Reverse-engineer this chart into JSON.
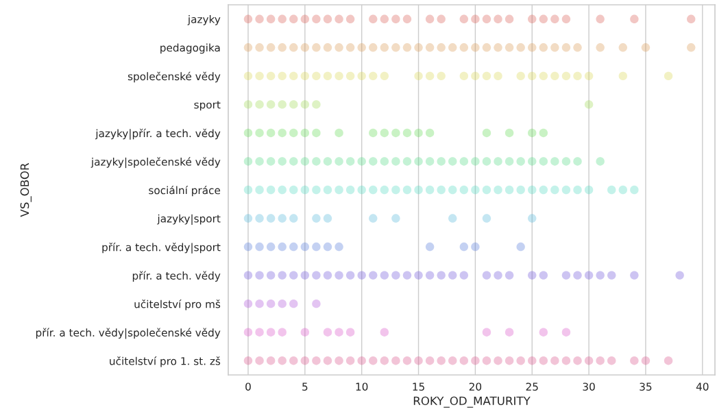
{
  "chart_data": {
    "type": "scatter",
    "orientation": "horizontal",
    "xlabel": "ROKY_OD_MATURITY",
    "ylabel": "VS_OBOR",
    "categories": [
      "jazyky",
      "pedagogika",
      "společenské vědy",
      "sport",
      "jazyky|přír. a tech. vědy",
      "jazyky|společenské vědy",
      "sociální práce",
      "jazyky|sport",
      "přír. a tech. vědy|sport",
      "přír. a tech. vědy",
      "učitelství pro mš",
      "přír. a tech. vědy|společenské vědy",
      "učitelství pro 1. st. zš"
    ],
    "xlim": [
      -1.75,
      41.1
    ],
    "xticks": [
      0,
      5,
      10,
      15,
      20,
      25,
      30,
      35,
      40
    ],
    "grid": "x",
    "marker": "circle",
    "legend": false,
    "series": [
      {
        "color": "#db5f57",
        "values": [
          0,
          1,
          2,
          3,
          4,
          5,
          6,
          7,
          8,
          9,
          11,
          12,
          13,
          14,
          16,
          17,
          19,
          20,
          21,
          22,
          23,
          25,
          26,
          27,
          28,
          31,
          34,
          39
        ],
        "x": [
          "jazyky",
          "jazyky",
          "jazyky",
          "jazyky",
          "jazyky",
          "jazyky",
          "jazyky",
          "jazyky",
          "jazyky",
          "jazyky",
          "jazyky",
          "jazyky",
          "jazyky",
          "jazyky",
          "jazyky",
          "jazyky",
          "jazyky",
          "jazyky",
          "jazyky",
          "jazyky",
          "jazyky",
          "jazyky",
          "jazyky",
          "jazyky",
          "jazyky",
          "jazyky",
          "jazyky",
          "jazyky"
        ]
      },
      {
        "color": "#db9c57",
        "values": [
          0,
          1,
          2,
          3,
          4,
          5,
          6,
          7,
          8,
          9,
          10,
          11,
          12,
          13,
          14,
          15,
          16,
          17,
          18,
          19,
          20,
          21,
          22,
          23,
          24,
          25,
          26,
          27,
          28,
          29,
          31,
          33,
          35,
          39
        ],
        "x": [
          "pedagogika",
          "pedagogika",
          "pedagogika",
          "pedagogika",
          "pedagogika",
          "pedagogika",
          "pedagogika",
          "pedagogika",
          "pedagogika",
          "pedagogika",
          "pedagogika",
          "pedagogika",
          "pedagogika",
          "pedagogika",
          "pedagogika",
          "pedagogika",
          "pedagogika",
          "pedagogika",
          "pedagogika",
          "pedagogika",
          "pedagogika",
          "pedagogika",
          "pedagogika",
          "pedagogika",
          "pedagogika",
          "pedagogika",
          "pedagogika",
          "pedagogika",
          "pedagogika",
          "pedagogika",
          "pedagogika",
          "pedagogika",
          "pedagogika",
          "pedagogika"
        ]
      },
      {
        "color": "#dbd857",
        "values": [
          0,
          1,
          2,
          3,
          4,
          5,
          6,
          7,
          8,
          9,
          10,
          11,
          12,
          15,
          16,
          17,
          19,
          20,
          21,
          22,
          24,
          25,
          26,
          27,
          28,
          29,
          30,
          33,
          37
        ],
        "x": [
          "společenské vědy",
          "společenské vědy",
          "společenské vědy",
          "společenské vědy",
          "společenské vědy",
          "společenské vědy",
          "společenské vědy",
          "společenské vědy",
          "společenské vědy",
          "společenské vědy",
          "společenské vědy",
          "společenské vědy",
          "společenské vědy",
          "společenské vědy",
          "společenské vědy",
          "společenské vědy",
          "společenské vědy",
          "společenské vědy",
          "společenské vědy",
          "společenské vědy",
          "společenské vědy",
          "společenské vědy",
          "společenské vědy",
          "společenské vědy",
          "společenské vědy",
          "společenské vědy",
          "společenské vědy",
          "společenské vědy",
          "společenské vědy"
        ]
      },
      {
        "color": "#a1db57",
        "values": [
          0,
          1,
          2,
          3,
          4,
          5,
          6,
          30
        ],
        "x": [
          "sport",
          "sport",
          "sport",
          "sport",
          "sport",
          "sport",
          "sport",
          "sport"
        ]
      },
      {
        "color": "#64db57",
        "values": [
          0,
          1,
          2,
          3,
          4,
          5,
          6,
          8,
          11,
          12,
          13,
          14,
          15,
          16,
          21,
          23,
          25,
          26
        ],
        "x": [
          "jazyky|přír. a tech. vědy",
          "jazyky|přír. a tech. vědy",
          "jazyky|přír. a tech. vědy",
          "jazyky|přír. a tech. vědy",
          "jazyky|přír. a tech. vědy",
          "jazyky|přír. a tech. vědy",
          "jazyky|přír. a tech. vědy",
          "jazyky|přír. a tech. vědy",
          "jazyky|přír. a tech. vědy",
          "jazyky|přír. a tech. vědy",
          "jazyky|přír. a tech. vědy",
          "jazyky|přír. a tech. vědy",
          "jazyky|přír. a tech. vědy",
          "jazyky|přír. a tech. vědy",
          "jazyky|přír. a tech. vědy",
          "jazyky|přír. a tech. vědy",
          "jazyky|přír. a tech. vědy",
          "jazyky|přír. a tech. vědy"
        ]
      },
      {
        "color": "#57db87",
        "values": [
          0,
          1,
          2,
          3,
          4,
          5,
          6,
          7,
          8,
          9,
          10,
          11,
          12,
          13,
          14,
          15,
          16,
          17,
          18,
          19,
          20,
          21,
          22,
          23,
          24,
          25,
          26,
          27,
          28,
          29,
          31
        ],
        "x": [
          "jazyky|společenské vědy",
          "jazyky|společenské vědy",
          "jazyky|společenské vědy",
          "jazyky|společenské vědy",
          "jazyky|společenské vědy",
          "jazyky|společenské vědy",
          "jazyky|společenské vědy",
          "jazyky|společenské vědy",
          "jazyky|společenské vědy",
          "jazyky|společenské vědy",
          "jazyky|společenské vědy",
          "jazyky|společenské vědy",
          "jazyky|společenské vědy",
          "jazyky|společenské vědy",
          "jazyky|společenské vědy",
          "jazyky|společenské vědy",
          "jazyky|společenské vědy",
          "jazyky|společenské vědy",
          "jazyky|společenské vědy",
          "jazyky|společenské vědy",
          "jazyky|společenské vědy",
          "jazyky|společenské vědy",
          "jazyky|společenské vědy",
          "jazyky|společenské vědy",
          "jazyky|společenské vědy",
          "jazyky|společenské vědy",
          "jazyky|společenské vědy",
          "jazyky|společenské vědy",
          "jazyky|společenské vědy",
          "jazyky|společenské vědy",
          "jazyky|společenské vědy"
        ]
      },
      {
        "color": "#57dbc3",
        "values": [
          0,
          1,
          2,
          3,
          4,
          5,
          6,
          7,
          8,
          9,
          10,
          11,
          12,
          13,
          14,
          15,
          16,
          17,
          18,
          19,
          20,
          21,
          22,
          23,
          24,
          25,
          26,
          27,
          28,
          29,
          30,
          32,
          33,
          34
        ],
        "x": [
          "sociální práce",
          "sociální práce",
          "sociální práce",
          "sociální práce",
          "sociální práce",
          "sociální práce",
          "sociální práce",
          "sociální práce",
          "sociální práce",
          "sociální práce",
          "sociální práce",
          "sociální práce",
          "sociální práce",
          "sociální práce",
          "sociální práce",
          "sociální práce",
          "sociální práce",
          "sociální práce",
          "sociální práce",
          "sociální práce",
          "sociální práce",
          "sociální práce",
          "sociální práce",
          "sociální práce",
          "sociální práce",
          "sociální práce",
          "sociální práce",
          "sociální práce",
          "sociální práce",
          "sociální práce",
          "sociální práce",
          "sociální práce",
          "sociální práce",
          "sociální práce"
        ]
      },
      {
        "color": "#57b6db",
        "values": [
          0,
          1,
          2,
          3,
          4,
          6,
          7,
          11,
          13,
          18,
          21,
          25
        ],
        "x": [
          "jazyky|sport",
          "jazyky|sport",
          "jazyky|sport",
          "jazyky|sport",
          "jazyky|sport",
          "jazyky|sport",
          "jazyky|sport",
          "jazyky|sport",
          "jazyky|sport",
          "jazyky|sport",
          "jazyky|sport",
          "jazyky|sport"
        ]
      },
      {
        "color": "#577bdb",
        "values": [
          0,
          1,
          2,
          3,
          4,
          5,
          6,
          7,
          8,
          16,
          19,
          20,
          24
        ],
        "x": [
          "přír. a tech. vědy|sport",
          "přír. a tech. vědy|sport",
          "přír. a tech. vědy|sport",
          "přír. a tech. vědy|sport",
          "přír. a tech. vědy|sport",
          "přír. a tech. vědy|sport",
          "přír. a tech. vědy|sport",
          "přír. a tech. vědy|sport",
          "přír. a tech. vědy|sport",
          "přír. a tech. vědy|sport",
          "přír. a tech. vědy|sport",
          "přír. a tech. vědy|sport",
          "přír. a tech. vědy|sport"
        ]
      },
      {
        "color": "#7157db",
        "values": [
          0,
          1,
          2,
          3,
          4,
          5,
          6,
          7,
          8,
          9,
          10,
          11,
          12,
          13,
          14,
          15,
          16,
          17,
          18,
          19,
          21,
          22,
          23,
          25,
          26,
          28,
          29,
          30,
          31,
          32,
          34,
          38
        ],
        "x": [
          "přír. a tech. vědy",
          "přír. a tech. vědy",
          "přír. a tech. vědy",
          "přír. a tech. vědy",
          "přír. a tech. vědy",
          "přír. a tech. vědy",
          "přír. a tech. vědy",
          "přír. a tech. vědy",
          "přír. a tech. vědy",
          "přír. a tech. vědy",
          "přír. a tech. vědy",
          "přír. a tech. vědy",
          "přír. a tech. vědy",
          "přír. a tech. vědy",
          "přír. a tech. vědy",
          "přír. a tech. vědy",
          "přír. a tech. vědy",
          "přír. a tech. vědy",
          "přír. a tech. vědy",
          "přír. a tech. vědy",
          "přír. a tech. vědy",
          "přír. a tech. vědy",
          "přír. a tech. vědy",
          "přír. a tech. vědy",
          "přír. a tech. vědy",
          "přír. a tech. vědy",
          "přír. a tech. vědy",
          "přír. a tech. vědy",
          "přír. a tech. vědy",
          "přír. a tech. vědy",
          "přír. a tech. vědy",
          "přír. a tech. vědy"
        ]
      },
      {
        "color": "#af57db",
        "values": [
          0,
          1,
          2,
          3,
          4,
          6
        ],
        "x": [
          "učitelství pro mš",
          "učitelství pro mš",
          "učitelství pro mš",
          "učitelství pro mš",
          "učitelství pro mš",
          "učitelství pro mš"
        ]
      },
      {
        "color": "#db57c9",
        "values": [
          0,
          1,
          2,
          3,
          5,
          7,
          8,
          9,
          12,
          21,
          23,
          26,
          28
        ],
        "x": [
          "přír. a tech. vědy|společenské vědy",
          "přír. a tech. vědy|společenské vědy",
          "přír. a tech. vědy|společenské vědy",
          "přír. a tech. vědy|společenské vědy",
          "přír. a tech. vědy|společenské vědy",
          "přír. a tech. vědy|společenské vědy",
          "přír. a tech. vědy|společenské vědy",
          "přír. a tech. vědy|společenské vědy",
          "přír. a tech. vědy|společenské vědy",
          "přír. a tech. vědy|společenské vědy",
          "přír. a tech. vědy|společenské vědy",
          "přír. a tech. vědy|společenské vědy",
          "přír. a tech. vědy|společenské vědy"
        ]
      },
      {
        "color": "#db578d",
        "values": [
          0,
          1,
          2,
          3,
          4,
          5,
          6,
          7,
          8,
          9,
          10,
          11,
          12,
          13,
          14,
          15,
          16,
          17,
          18,
          19,
          20,
          21,
          22,
          23,
          24,
          25,
          26,
          27,
          28,
          29,
          30,
          31,
          32,
          34,
          35,
          37
        ],
        "x": [
          "učitelství pro 1. st. zš",
          "učitelství pro 1. st. zš",
          "učitelství pro 1. st. zš",
          "učitelství pro 1. st. zš",
          "učitelství pro 1. st. zš",
          "učitelství pro 1. st. zš",
          "učitelství pro 1. st. zš",
          "učitelství pro 1. st. zš",
          "učitelství pro 1. st. zš",
          "učitelství pro 1. st. zš",
          "učitelství pro 1. st. zš",
          "učitelství pro 1. st. zš",
          "učitelství pro 1. st. zš",
          "učitelství pro 1. st. zš",
          "učitelství pro 1. st. zš",
          "učitelství pro 1. st. zš",
          "učitelství pro 1. st. zš",
          "učitelství pro 1. st. zš",
          "učitelství pro 1. st. zš",
          "učitelství pro 1. st. zš",
          "učitelství pro 1. st. zš",
          "učitelství pro 1. st. zš",
          "učitelství pro 1. st. zš",
          "učitelství pro 1. st. zš",
          "učitelství pro 1. st. zš",
          "učitelství pro 1. st. zš",
          "učitelství pro 1. st. zš",
          "učitelství pro 1. st. zš",
          "učitelství pro 1. st. zš",
          "učitelství pro 1. st. zš",
          "učitelství pro 1. st. zš",
          "učitelství pro 1. st. zš",
          "učitelství pro 1. st. zš",
          "učitelství pro 1. st. zš",
          "učitelství pro 1. st. zš",
          "učitelství pro 1. st. zš"
        ]
      }
    ]
  }
}
